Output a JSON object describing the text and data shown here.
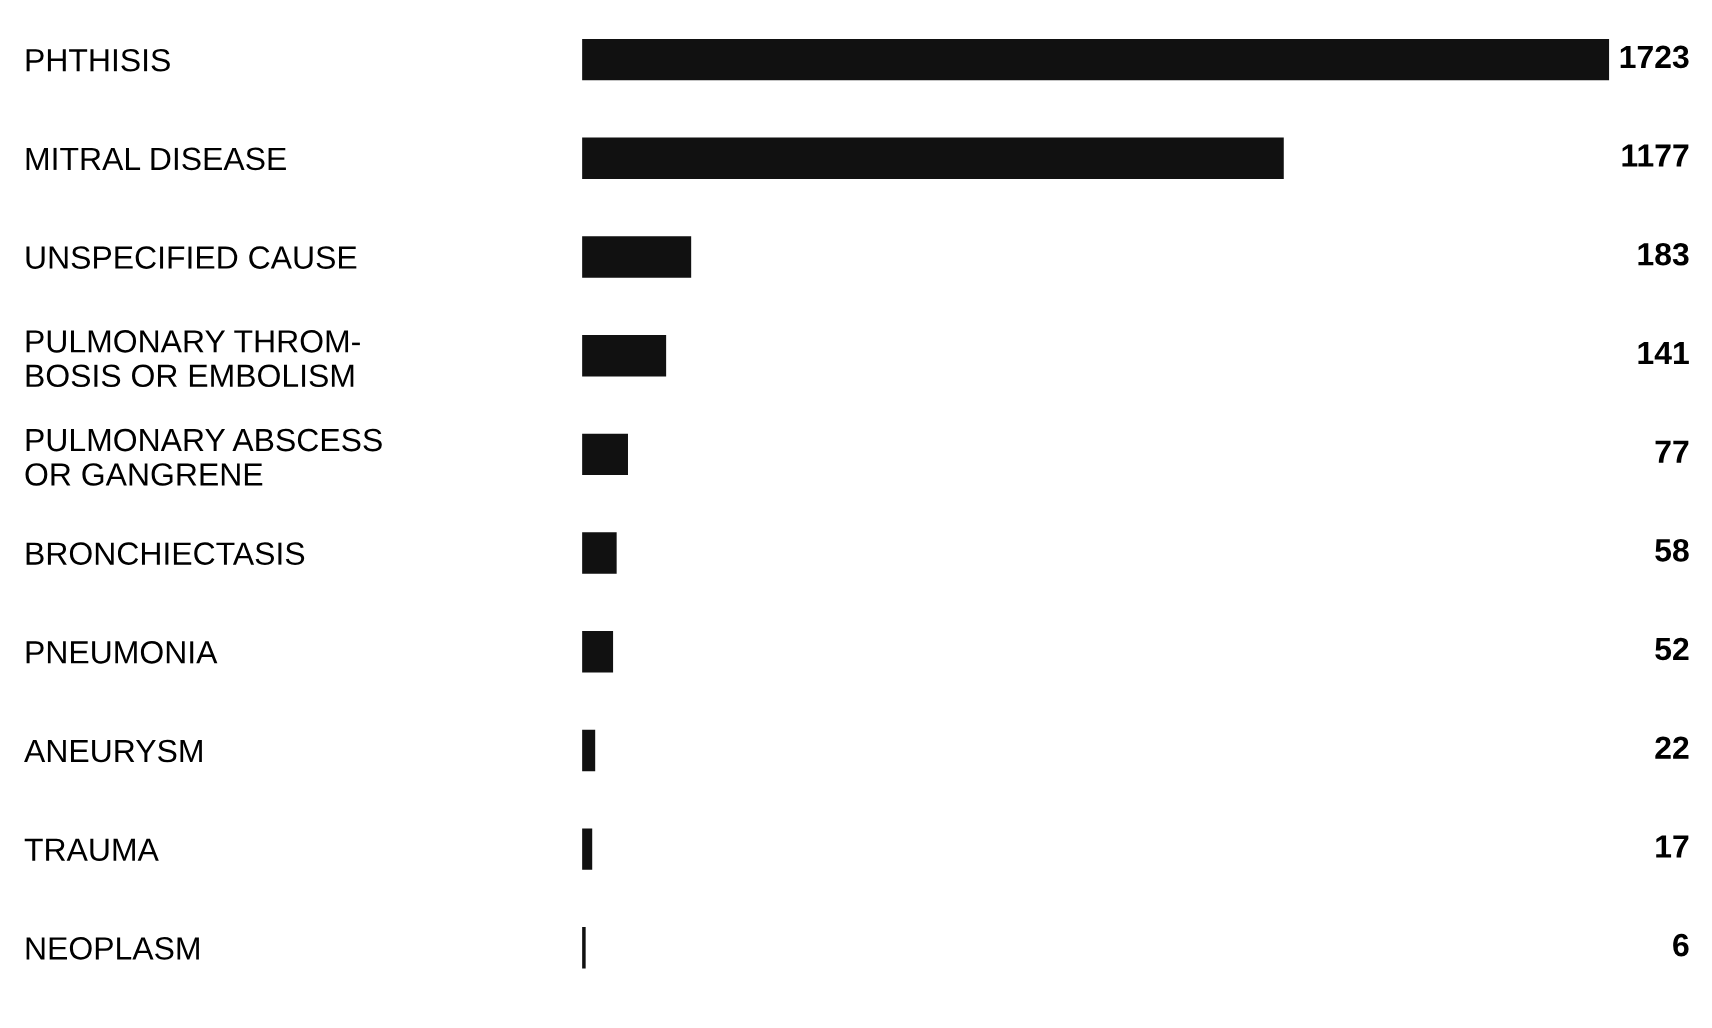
{
  "chart_data": {
    "type": "bar",
    "orientation": "horizontal",
    "data_labels": true,
    "grid": false,
    "legend": false,
    "categories": [
      "PHTHISIS",
      "MITRAL DISEASE",
      "UNSPECIFIED CAUSE",
      "PULMONARY THROM-\nBOSIS OR EMBOLISM",
      "PULMONARY ABSCESS\nOR GANGRENE",
      "BRONCHIECTASIS",
      "PNEUMONIA",
      "ANEURYSM",
      "TRAUMA",
      "NEOPLASM"
    ],
    "values": [
      1723,
      1177,
      183,
      141,
      77,
      58,
      52,
      22,
      17,
      6
    ],
    "color": "#111111"
  }
}
